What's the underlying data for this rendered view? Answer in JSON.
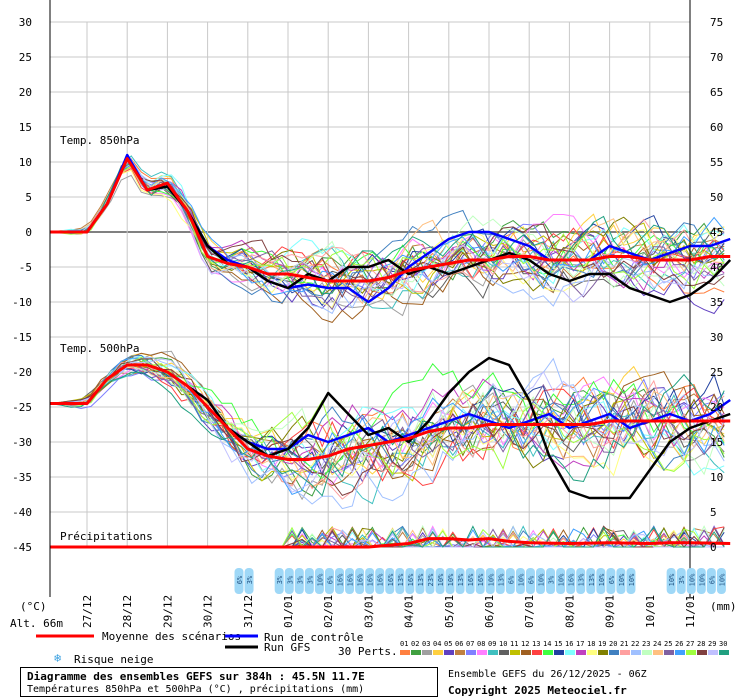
{
  "chart_data": {
    "type": "line",
    "x_dates": [
      "27/12",
      "28/12",
      "29/12",
      "30/12",
      "31/12",
      "01/01",
      "02/01",
      "03/01",
      "04/01",
      "05/01",
      "06/01",
      "07/01",
      "08/01",
      "09/01",
      "10/01",
      "11/01"
    ],
    "left_axis_ticks": [
      30,
      25,
      20,
      15,
      10,
      5,
      0,
      -5,
      -10,
      -15,
      -20,
      -25,
      -30,
      -35,
      -40,
      -45
    ],
    "right_axis_ticks": [
      75,
      70,
      65,
      60,
      55,
      50,
      45,
      40,
      35,
      30,
      25,
      20,
      15,
      10,
      5,
      0
    ],
    "left_unit": "(°C)",
    "right_unit": "(mm)",
    "altitude_label": "Alt. 66m",
    "panel_labels": {
      "t850": "Temp. 850hPa",
      "t500": "Temp. 500hPa",
      "precip": "Précipitations"
    },
    "series": [
      {
        "name": "Moyenne des scénarios",
        "color": "#ff0000",
        "panel": "t850",
        "x": [
          0,
          0.5,
          1,
          1.5,
          2,
          2.5,
          3,
          3.5,
          4,
          4.5,
          5,
          5.5,
          6,
          6.5,
          7,
          7.5,
          8,
          8.5,
          9,
          9.5,
          10,
          10.5,
          11,
          11.5,
          12,
          12.5,
          13,
          13.5,
          14,
          14.5,
          15,
          15.5,
          16
        ],
        "values": [
          0,
          4,
          10.5,
          6,
          7,
          3,
          -3.5,
          -4.5,
          -5,
          -6,
          -6,
          -6.5,
          -7,
          -7,
          -7,
          -6.5,
          -5.5,
          -5,
          -4.5,
          -4,
          -4,
          -3.5,
          -3.5,
          -4,
          -4,
          -4,
          -3.5,
          -3.5,
          -4,
          -4,
          -4,
          -3.5,
          -3.5
        ]
      },
      {
        "name": "Moyenne des scénarios",
        "color": "#ff0000",
        "panel": "t500",
        "x": [
          0,
          0.5,
          1,
          1.5,
          2,
          2.5,
          3,
          3.5,
          4,
          4.5,
          5,
          5.5,
          6,
          6.5,
          7,
          7.5,
          8,
          8.5,
          9,
          9.5,
          10,
          10.5,
          11,
          11.5,
          12,
          12.5,
          13,
          13.5,
          14,
          14.5,
          15,
          15.5,
          16
        ],
        "values": [
          -24.5,
          -21,
          -19,
          -19,
          -20,
          -22,
          -25,
          -28,
          -31,
          -32,
          -32.5,
          -32.5,
          -32,
          -31,
          -30.5,
          -30,
          -29.5,
          -28.5,
          -28,
          -28,
          -27.5,
          -27.5,
          -27.5,
          -27.5,
          -27.5,
          -27.5,
          -27,
          -27,
          -27,
          -27,
          -27,
          -27,
          -27
        ]
      },
      {
        "name": "Moyenne des scénarios",
        "color": "#ff0000",
        "panel": "precip",
        "x": [
          0,
          1,
          2,
          3,
          4,
          5,
          6,
          7,
          8,
          8.5,
          9,
          9.5,
          10,
          10.5,
          11,
          12,
          13,
          14,
          14.5,
          15,
          16
        ],
        "values": [
          0,
          0,
          0,
          0,
          0,
          0,
          0,
          0,
          0.5,
          1.2,
          1.2,
          1,
          1.2,
          0.8,
          0.6,
          0.5,
          0.6,
          0.5,
          0.6,
          0.6,
          0.5
        ]
      },
      {
        "name": "Run de contrôle",
        "color": "#0000ff",
        "panel": "t850",
        "x": [
          0,
          0.5,
          1,
          1.5,
          2,
          2.5,
          3,
          3.5,
          4,
          4.5,
          5,
          5.5,
          6,
          6.5,
          7,
          7.5,
          8,
          8.5,
          9,
          9.5,
          10,
          10.5,
          11,
          11.5,
          12,
          12.5,
          13,
          13.5,
          14,
          14.5,
          15,
          15.5,
          16
        ],
        "values": [
          0,
          4,
          11,
          6,
          6.5,
          3,
          -2,
          -4,
          -5,
          -7,
          -8,
          -7.5,
          -8,
          -8,
          -10,
          -8,
          -5,
          -3,
          -1,
          0,
          0,
          -1,
          -2,
          -4,
          -4,
          -4,
          -2,
          -3,
          -4,
          -3,
          -2,
          -2,
          -1
        ]
      },
      {
        "name": "Run de contrôle",
        "color": "#0000ff",
        "panel": "t500",
        "x": [
          0,
          0.5,
          1,
          1.5,
          2,
          2.5,
          3,
          3.5,
          4,
          4.5,
          5,
          5.5,
          6,
          6.5,
          7,
          7.5,
          8,
          8.5,
          9,
          9.5,
          10,
          10.5,
          11,
          11.5,
          12,
          12.5,
          13,
          13.5,
          14,
          14.5,
          15,
          15.5,
          16
        ],
        "values": [
          -24.5,
          -21,
          -19,
          -19,
          -20,
          -22,
          -25,
          -28,
          -30,
          -31,
          -31,
          -29,
          -30,
          -29,
          -28,
          -30,
          -29,
          -28,
          -27,
          -26,
          -27,
          -28,
          -27,
          -26,
          -28,
          -27,
          -26,
          -28,
          -27,
          -26,
          -27,
          -26,
          -24
        ]
      },
      {
        "name": "Run GFS",
        "color": "#000000",
        "panel": "t850",
        "x": [
          0,
          0.5,
          1,
          1.5,
          2,
          2.5,
          3,
          3.5,
          4,
          4.5,
          5,
          5.5,
          6,
          6.5,
          7,
          7.5,
          8,
          8.5,
          9,
          9.5,
          10,
          10.5,
          11,
          11.5,
          12,
          12.5,
          13,
          13.5,
          14,
          14.5,
          15,
          15.5,
          16
        ],
        "values": [
          0,
          4,
          10.5,
          6,
          6.5,
          3,
          -2,
          -4.5,
          -5,
          -7,
          -8,
          -6,
          -7,
          -5,
          -5,
          -4,
          -6,
          -5,
          -6,
          -5,
          -4,
          -3,
          -4,
          -6,
          -7,
          -6,
          -6,
          -8,
          -9,
          -10,
          -9,
          -7,
          -4
        ]
      },
      {
        "name": "Run GFS",
        "color": "#000000",
        "panel": "t500",
        "x": [
          0,
          0.5,
          1,
          1.5,
          2,
          2.5,
          3,
          3.5,
          4,
          4.5,
          5,
          5.5,
          6,
          6.5,
          7,
          7.5,
          8,
          8.5,
          9,
          9.5,
          10,
          10.5,
          11,
          11.5,
          12,
          12.5,
          13,
          13.5,
          14,
          14.5,
          15,
          15.5,
          16
        ],
        "values": [
          -24.5,
          -21,
          -19,
          -19,
          -20,
          -22,
          -24,
          -28,
          -30,
          -32,
          -31,
          -28,
          -23,
          -26,
          -29,
          -28,
          -30,
          -27,
          -23,
          -20,
          -18,
          -19,
          -24,
          -32,
          -37,
          -38,
          -38,
          -38,
          -34,
          -30,
          -28,
          -27,
          -26
        ]
      }
    ],
    "snow_risk_labels": [
      "6%",
      "3%",
      "3%",
      "3%",
      "3%",
      "3%",
      "10%",
      "6%",
      "16%",
      "16%",
      "16%",
      "16%",
      "16%",
      "16%",
      "13%",
      "16%",
      "13%",
      "23%",
      "10%",
      "10%",
      "13%",
      "16%",
      "16%",
      "10%",
      "13%",
      "6%",
      "10%",
      "6%",
      "10%",
      "3%",
      "10%",
      "16%",
      "13%",
      "13%",
      "10%",
      "6%",
      "10%",
      "10%",
      "10%",
      "3%",
      "10%",
      "10%",
      "6%",
      "10%"
    ],
    "legend": {
      "mean": "Moyenne des scénarios",
      "control": "Run de contrôle",
      "gfs": "Run GFS",
      "snow": "Risque neige",
      "perts": "30 Perts.",
      "pert_numbers": [
        "01",
        "02",
        "03",
        "04",
        "05",
        "06",
        "07",
        "08",
        "09",
        "10",
        "11",
        "12",
        "13",
        "14",
        "15",
        "16",
        "17",
        "18",
        "19",
        "20",
        "21",
        "22",
        "23",
        "24",
        "25",
        "26",
        "27",
        "28",
        "29",
        "30"
      ],
      "pert_colors": [
        "#ff8040",
        "#40a040",
        "#a0a0a0",
        "#ffd040",
        "#6040c0",
        "#c08040",
        "#8080ff",
        "#ff80ff",
        "#40c0c0",
        "#606060",
        "#c0c000",
        "#a06020",
        "#ff4040",
        "#40ff40",
        "#2040a0",
        "#80ffff",
        "#c040c0",
        "#ffff80",
        "#808000",
        "#4080c0",
        "#ffa0a0",
        "#a0c0ff",
        "#c0ffc0",
        "#ffc080",
        "#8060a0",
        "#40a0ff",
        "#a0ff40",
        "#804040",
        "#c0c0ff",
        "#20a080"
      ]
    },
    "footer": {
      "title": "Diagramme des ensembles GEFS sur 384h : 45.5N 11.7E",
      "subtitle": "Températures 850hPa et 500hPa (°C) , précipitations (mm)",
      "run_info": "Ensemble GEFS du 26/12/2025 - 06Z",
      "copyright": "Copyright 2025 Meteociel.fr"
    }
  }
}
